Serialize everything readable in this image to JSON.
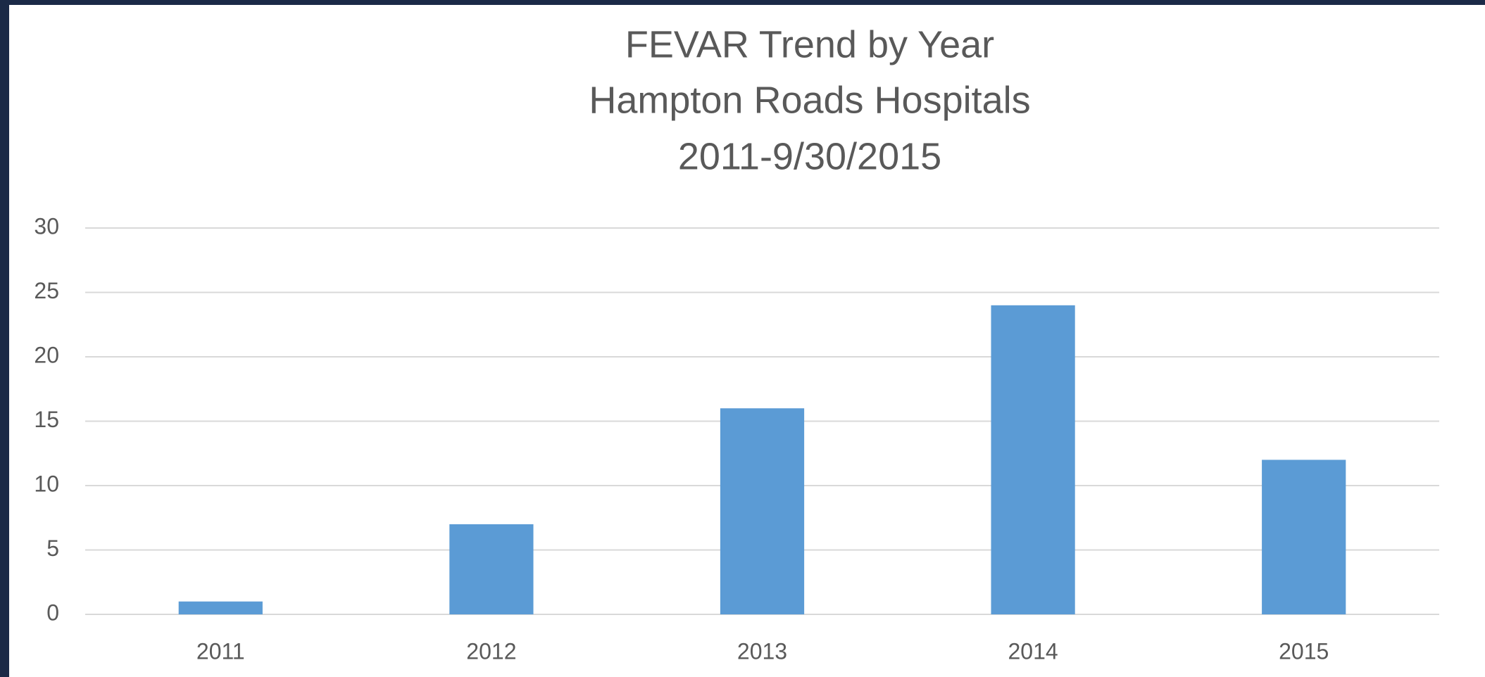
{
  "chart_data": {
    "type": "bar",
    "title": "FEVAR Trend by Year",
    "subtitle": [
      "Hampton Roads Hospitals",
      "2011-9/30/2015"
    ],
    "categories": [
      "2011",
      "2012",
      "2013",
      "2014",
      "2015"
    ],
    "values": [
      1,
      7,
      16,
      24,
      12
    ],
    "color": "#5b9bd5",
    "ylim": [
      0,
      30
    ],
    "yticks": [
      0,
      5,
      10,
      15,
      20,
      25,
      30
    ],
    "grid": true
  }
}
